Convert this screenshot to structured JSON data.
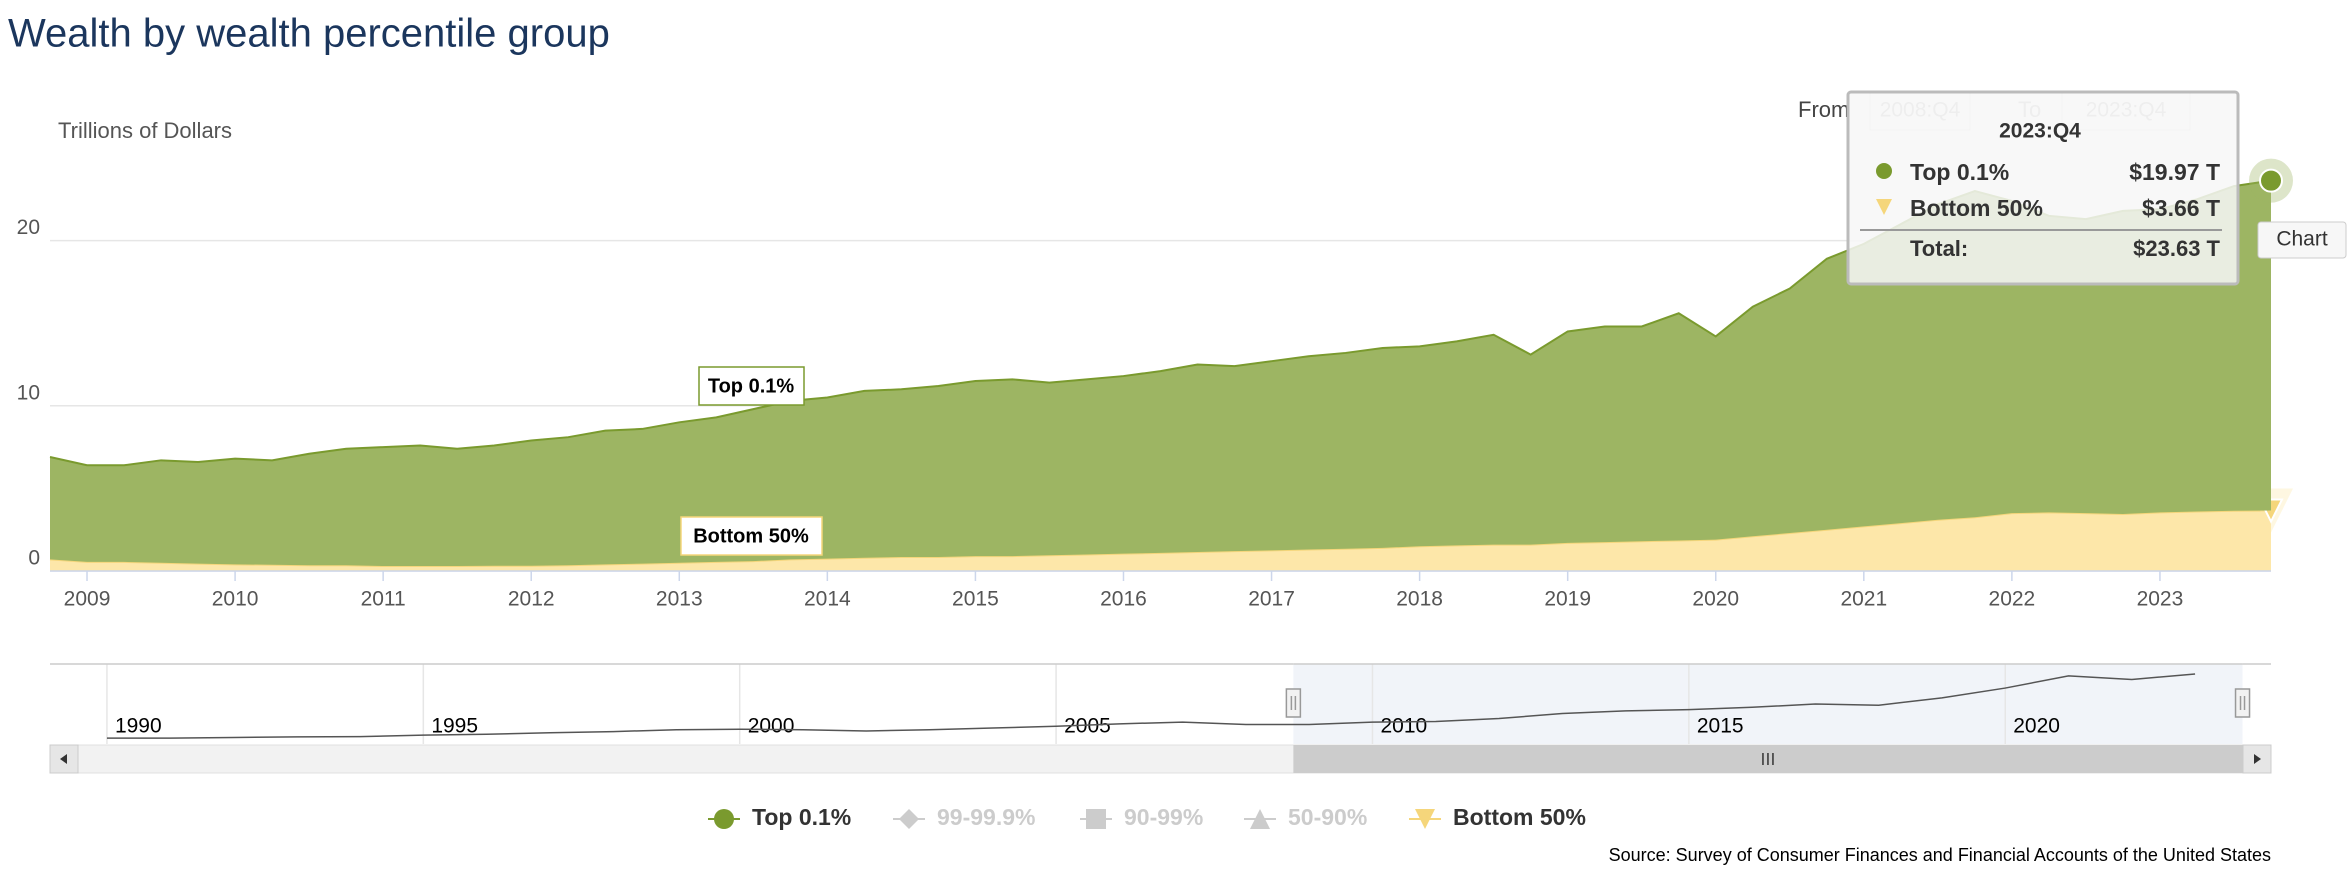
{
  "chart_data": {
    "type": "area",
    "stacking": true,
    "title": "Wealth by wealth percentile group",
    "y_axis_label": "Trillions of Dollars",
    "x": [
      2008.75,
      2009,
      2009.25,
      2009.5,
      2009.75,
      2010,
      2010.25,
      2010.5,
      2010.75,
      2011,
      2011.25,
      2011.5,
      2011.75,
      2012,
      2012.25,
      2012.5,
      2012.75,
      2013,
      2013.25,
      2013.5,
      2013.75,
      2014,
      2014.25,
      2014.5,
      2014.75,
      2015,
      2015.25,
      2015.5,
      2015.75,
      2016,
      2016.25,
      2016.5,
      2016.75,
      2017,
      2017.25,
      2017.5,
      2017.75,
      2018,
      2018.25,
      2018.5,
      2018.75,
      2019,
      2019.25,
      2019.5,
      2019.75,
      2020,
      2020.25,
      2020.5,
      2020.75,
      2021,
      2021.25,
      2021.5,
      2021.75,
      2022,
      2022.25,
      2022.5,
      2022.75,
      2023,
      2023.25,
      2023.5,
      2023.75
    ],
    "series": [
      {
        "name": "Top 0.1%",
        "color": "#9db563",
        "line_color": "#7a9a2e",
        "symbol": "circle",
        "values": [
          6.2,
          5.85,
          5.85,
          6.2,
          6.15,
          6.4,
          6.32,
          6.75,
          7.05,
          7.2,
          7.3,
          7.1,
          7.28,
          7.58,
          7.75,
          8.1,
          8.15,
          8.5,
          8.75,
          9.2,
          9.6,
          9.75,
          10.1,
          10.15,
          10.35,
          10.6,
          10.7,
          10.45,
          10.6,
          10.75,
          11.0,
          11.35,
          11.2,
          11.45,
          11.7,
          11.85,
          12.1,
          12.1,
          12.35,
          12.7,
          11.5,
          12.8,
          13.05,
          13.0,
          13.75,
          12.3,
          13.9,
          14.8,
          16.4,
          17.1,
          18.1,
          19.1,
          19.75,
          18.9,
          17.95,
          17.8,
          18.35,
          18.35,
          18.9,
          19.65,
          19.97
        ]
      },
      {
        "name": "Bottom 50%",
        "color": "#fde7a9",
        "line_color": "#f5d67b",
        "symbol": "triangle-down",
        "values": [
          0.7,
          0.55,
          0.55,
          0.5,
          0.45,
          0.4,
          0.38,
          0.35,
          0.35,
          0.3,
          0.3,
          0.3,
          0.32,
          0.32,
          0.35,
          0.4,
          0.45,
          0.5,
          0.55,
          0.6,
          0.7,
          0.75,
          0.8,
          0.85,
          0.85,
          0.9,
          0.9,
          0.95,
          1.0,
          1.05,
          1.1,
          1.15,
          1.2,
          1.25,
          1.3,
          1.35,
          1.4,
          1.5,
          1.55,
          1.6,
          1.6,
          1.7,
          1.75,
          1.8,
          1.85,
          1.9,
          2.1,
          2.3,
          2.5,
          2.7,
          2.9,
          3.1,
          3.25,
          3.5,
          3.55,
          3.5,
          3.45,
          3.55,
          3.6,
          3.65,
          3.66
        ]
      }
    ],
    "inactive_series": [
      {
        "name": "99-99.9%",
        "symbol": "diamond"
      },
      {
        "name": "90-99%",
        "symbol": "square"
      },
      {
        "name": "50-90%",
        "symbol": "triangle"
      }
    ],
    "xlim": [
      2008.75,
      2023.75
    ],
    "xticks": [
      2009,
      2010,
      2011,
      2012,
      2013,
      2014,
      2015,
      2016,
      2017,
      2018,
      2019,
      2020,
      2021,
      2022,
      2023
    ],
    "ylim": [
      0,
      25
    ],
    "yticks": [
      0,
      10,
      20
    ],
    "grid": true,
    "range_selector": {
      "from_label": "From",
      "from": "2008:Q4",
      "to_label": "To",
      "to": "2023:Q4"
    },
    "tooltip": {
      "title": "2023:Q4",
      "values": [
        "$19.97 T",
        "$3.66 T"
      ],
      "total_label": "Total:",
      "total": "$23.63 T"
    },
    "button": "Chart",
    "navigator": {
      "x": [
        1990,
        1991,
        1992,
        1993,
        1994,
        1995,
        1996,
        1997,
        1998,
        1999,
        2000,
        2001,
        2002,
        2003,
        2004,
        2005,
        2006,
        2007,
        2008,
        2009,
        2010,
        2011,
        2012,
        2013,
        2014,
        2015,
        2016,
        2017,
        2018,
        2019,
        2020,
        2021,
        2022,
        2023
      ],
      "values": [
        2.0,
        2.0,
        2.2,
        2.4,
        2.5,
        3.0,
        3.3,
        3.8,
        4.2,
        4.8,
        5.0,
        4.8,
        4.4,
        4.8,
        5.4,
        6.0,
        6.8,
        7.4,
        6.6,
        6.6,
        7.4,
        7.6,
        8.6,
        10.3,
        11.2,
        11.6,
        12.4,
        13.5,
        13.1,
        15.6,
        18.9,
        23.0,
        21.8,
        23.63
      ],
      "xlim": [
        1989.1,
        2024.2
      ],
      "ylim": [
        0,
        25
      ],
      "xticks": [
        1990,
        1995,
        2000,
        2005,
        2010,
        2015,
        2020
      ]
    },
    "source": "Source: Survey of Consumer Finances and Financial Accounts of the United States"
  }
}
